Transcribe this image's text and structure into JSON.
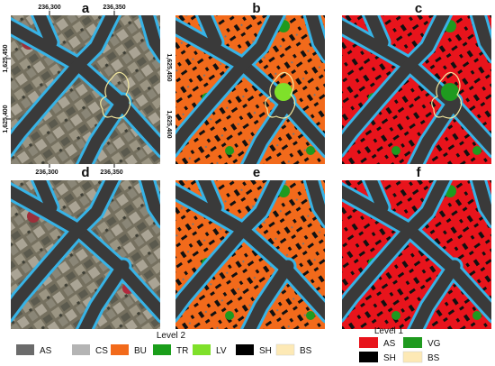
{
  "panels": [
    {
      "label": "a"
    },
    {
      "label": "b"
    },
    {
      "label": "c"
    },
    {
      "label": "d"
    },
    {
      "label": "e"
    },
    {
      "label": "f"
    }
  ],
  "coordinates": {
    "top": [
      "236,300",
      "236,350"
    ],
    "bottom": [
      "236,300",
      "236,350"
    ],
    "left": [
      "1,625,450",
      "1,625,400"
    ],
    "right": [
      "1,625,450",
      "1,625,400"
    ]
  },
  "legend_level2": {
    "title": "Level 2",
    "items": [
      "AS",
      "CS",
      "BU",
      "TR",
      "LV",
      "SH",
      "BS"
    ]
  },
  "legend_level1": {
    "title": "Level 1",
    "items": [
      "AS",
      "VG",
      "SH",
      "BS"
    ]
  }
}
